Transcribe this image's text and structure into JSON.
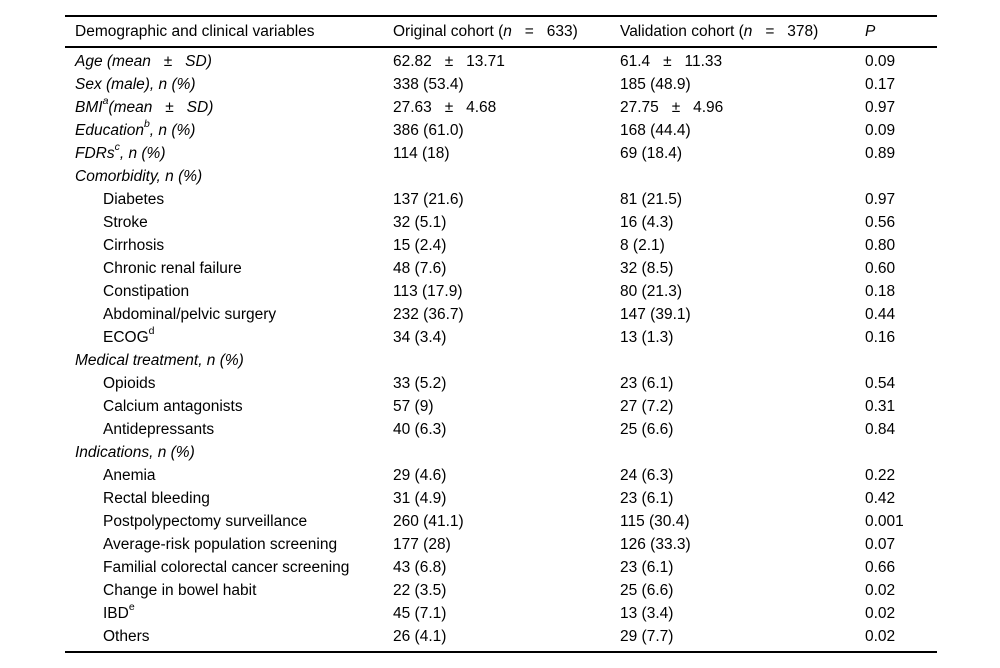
{
  "colors": {
    "text": "#000000",
    "background": "#ffffff",
    "rule": "#000000"
  },
  "table": {
    "headers": {
      "variables": "Demographic and clinical variables",
      "original": {
        "prefix": "Original cohort (",
        "n": "n",
        "eq": "   =   ",
        "count": "633)"
      },
      "validation": {
        "prefix": "Validation cohort (",
        "n": "n",
        "eq": "   =   ",
        "count": "378)"
      },
      "p": "P"
    },
    "rows": [
      {
        "label": "Age (mean   ±   SD)",
        "sup": "",
        "rest": "",
        "italic": true,
        "indent": false,
        "original": "62.82   ±   13.71",
        "validation": "61.4   ±   11.33",
        "p": "0.09"
      },
      {
        "label": "Sex (male), n (%)",
        "sup": "",
        "rest": "",
        "italic": true,
        "indent": false,
        "original": "338 (53.4)",
        "validation": "185 (48.9)",
        "p": "0.17"
      },
      {
        "label": "BMI",
        "sup": "a",
        "rest": "(mean   ±   SD)",
        "italic": true,
        "indent": false,
        "original": "27.63   ±   4.68",
        "validation": "27.75   ±   4.96",
        "p": "0.97"
      },
      {
        "label": "Education",
        "sup": "b",
        "rest": ", n (%)",
        "italic": true,
        "indent": false,
        "original": "386 (61.0)",
        "validation": "168 (44.4)",
        "p": "0.09"
      },
      {
        "label": "FDRs",
        "sup": "c",
        "rest": ", n (%)",
        "italic": true,
        "indent": false,
        "original": "114 (18)",
        "validation": "69 (18.4)",
        "p": "0.89"
      },
      {
        "label": "Comorbidity, n (%)",
        "sup": "",
        "rest": "",
        "italic": true,
        "indent": false,
        "original": "",
        "validation": "",
        "p": ""
      },
      {
        "label": "Diabetes",
        "sup": "",
        "rest": "",
        "italic": false,
        "indent": true,
        "original": "137 (21.6)",
        "validation": "81 (21.5)",
        "p": "0.97"
      },
      {
        "label": "Stroke",
        "sup": "",
        "rest": "",
        "italic": false,
        "indent": true,
        "original": "32 (5.1)",
        "validation": "16 (4.3)",
        "p": "0.56"
      },
      {
        "label": "Cirrhosis",
        "sup": "",
        "rest": "",
        "italic": false,
        "indent": true,
        "original": "15 (2.4)",
        "validation": "8 (2.1)",
        "p": "0.80"
      },
      {
        "label": "Chronic renal failure",
        "sup": "",
        "rest": "",
        "italic": false,
        "indent": true,
        "original": "48 (7.6)",
        "validation": "32 (8.5)",
        "p": "0.60"
      },
      {
        "label": "Constipation",
        "sup": "",
        "rest": "",
        "italic": false,
        "indent": true,
        "original": "113 (17.9)",
        "validation": "80 (21.3)",
        "p": "0.18"
      },
      {
        "label": "Abdominal/pelvic surgery",
        "sup": "",
        "rest": "",
        "italic": false,
        "indent": true,
        "original": "232 (36.7)",
        "validation": "147 (39.1)",
        "p": "0.44"
      },
      {
        "label": "ECOG",
        "sup": "d",
        "rest": "",
        "italic": false,
        "indent": true,
        "original": "34 (3.4)",
        "validation": "13 (1.3)",
        "p": "0.16"
      },
      {
        "label": "Medical treatment, n (%)",
        "sup": "",
        "rest": "",
        "italic": true,
        "indent": false,
        "original": "",
        "validation": "",
        "p": ""
      },
      {
        "label": "Opioids",
        "sup": "",
        "rest": "",
        "italic": false,
        "indent": true,
        "original": "33 (5.2)",
        "validation": "23 (6.1)",
        "p": "0.54"
      },
      {
        "label": "Calcium antagonists",
        "sup": "",
        "rest": "",
        "italic": false,
        "indent": true,
        "original": "57 (9)",
        "validation": "27 (7.2)",
        "p": "0.31"
      },
      {
        "label": "Antidepressants",
        "sup": "",
        "rest": "",
        "italic": false,
        "indent": true,
        "original": "40 (6.3)",
        "validation": "25 (6.6)",
        "p": "0.84"
      },
      {
        "label": "Indications, n (%)",
        "sup": "",
        "rest": "",
        "italic": true,
        "indent": false,
        "original": "",
        "validation": "",
        "p": ""
      },
      {
        "label": "Anemia",
        "sup": "",
        "rest": "",
        "italic": false,
        "indent": true,
        "original": "29 (4.6)",
        "validation": "24 (6.3)",
        "p": "0.22"
      },
      {
        "label": "Rectal bleeding",
        "sup": "",
        "rest": "",
        "italic": false,
        "indent": true,
        "original": "31 (4.9)",
        "validation": "23 (6.1)",
        "p": "0.42"
      },
      {
        "label": "Postpolypectomy surveillance",
        "sup": "",
        "rest": "",
        "italic": false,
        "indent": true,
        "original": "260 (41.1)",
        "validation": "115 (30.4)",
        "p": "0.001"
      },
      {
        "label": "Average-risk population screening",
        "sup": "",
        "rest": "",
        "italic": false,
        "indent": true,
        "original": "177 (28)",
        "validation": "126 (33.3)",
        "p": "0.07"
      },
      {
        "label": "Familial colorectal cancer screening",
        "sup": "",
        "rest": "",
        "italic": false,
        "indent": true,
        "original": "43 (6.8)",
        "validation": "23 (6.1)",
        "p": "0.66"
      },
      {
        "label": "Change in bowel habit",
        "sup": "",
        "rest": "",
        "italic": false,
        "indent": true,
        "original": "22 (3.5)",
        "validation": "25 (6.6)",
        "p": "0.02"
      },
      {
        "label": "IBD",
        "sup": "e",
        "rest": "",
        "italic": false,
        "indent": true,
        "original": "45 (7.1)",
        "validation": "13 (3.4)",
        "p": "0.02"
      },
      {
        "label": "Others",
        "sup": "",
        "rest": "",
        "italic": false,
        "indent": true,
        "original": "26 (4.1)",
        "validation": "29 (7.7)",
        "p": "0.02"
      }
    ]
  }
}
